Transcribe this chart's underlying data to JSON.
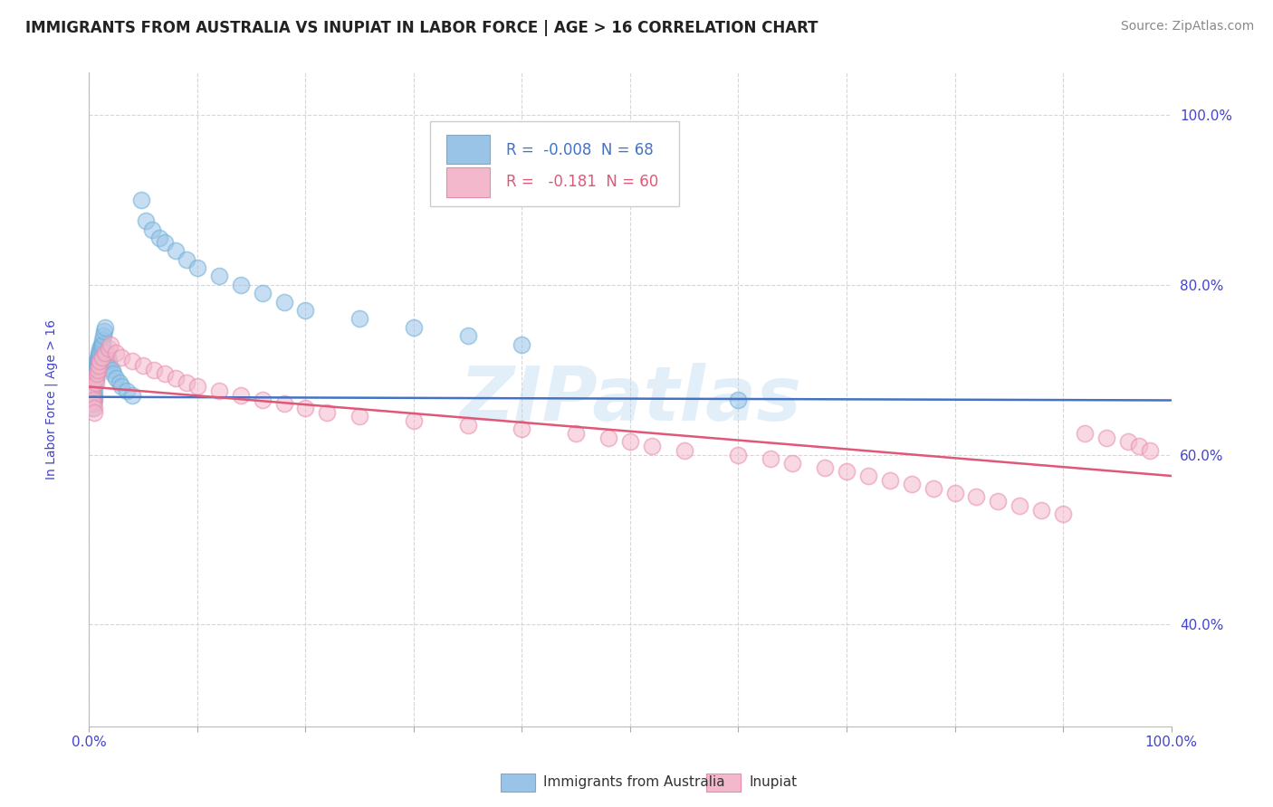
{
  "title": "IMMIGRANTS FROM AUSTRALIA VS INUPIAT IN LABOR FORCE | AGE > 16 CORRELATION CHART",
  "source": "Source: ZipAtlas.com",
  "ylabel": "In Labor Force | Age > 16",
  "xlim": [
    0.0,
    1.0
  ],
  "ylim": [
    0.28,
    1.05
  ],
  "xticks": [
    0.0,
    0.1,
    0.2,
    0.3,
    0.4,
    0.5,
    0.6,
    0.7,
    0.8,
    0.9,
    1.0
  ],
  "xticklabels": [
    "0.0%",
    "",
    "",
    "",
    "",
    "",
    "",
    "",
    "",
    "",
    "100.0%"
  ],
  "ytick_positions": [
    0.4,
    0.6,
    0.8,
    1.0
  ],
  "ytick_labels": [
    "40.0%",
    "60.0%",
    "80.0%",
    "100.0%"
  ],
  "legend_R1": "R =  -0.008  N = 68",
  "legend_R2": "R =   -0.181  N = 60",
  "blue_scatter_x": [
    0.002,
    0.002,
    0.002,
    0.003,
    0.003,
    0.003,
    0.003,
    0.004,
    0.004,
    0.004,
    0.004,
    0.005,
    0.005,
    0.005,
    0.005,
    0.005,
    0.005,
    0.006,
    0.006,
    0.006,
    0.007,
    0.007,
    0.007,
    0.008,
    0.008,
    0.008,
    0.009,
    0.009,
    0.009,
    0.009,
    0.01,
    0.01,
    0.011,
    0.011,
    0.012,
    0.012,
    0.013,
    0.014,
    0.015,
    0.016,
    0.017,
    0.018,
    0.019,
    0.021,
    0.022,
    0.025,
    0.028,
    0.03,
    0.035,
    0.04,
    0.048,
    0.052,
    0.058,
    0.065,
    0.07,
    0.08,
    0.09,
    0.1,
    0.12,
    0.14,
    0.16,
    0.18,
    0.2,
    0.25,
    0.3,
    0.35,
    0.4,
    0.6
  ],
  "blue_scatter_y": [
    0.695,
    0.685,
    0.675,
    0.67,
    0.665,
    0.66,
    0.655,
    0.68,
    0.67,
    0.665,
    0.66,
    0.69,
    0.685,
    0.68,
    0.675,
    0.67,
    0.665,
    0.7,
    0.695,
    0.69,
    0.71,
    0.705,
    0.7,
    0.715,
    0.71,
    0.705,
    0.72,
    0.715,
    0.71,
    0.705,
    0.725,
    0.72,
    0.73,
    0.725,
    0.735,
    0.73,
    0.74,
    0.745,
    0.75,
    0.72,
    0.715,
    0.71,
    0.705,
    0.7,
    0.695,
    0.69,
    0.685,
    0.68,
    0.675,
    0.67,
    0.9,
    0.875,
    0.865,
    0.855,
    0.85,
    0.84,
    0.83,
    0.82,
    0.81,
    0.8,
    0.79,
    0.78,
    0.77,
    0.76,
    0.75,
    0.74,
    0.73,
    0.665
  ],
  "pink_scatter_x": [
    0.003,
    0.003,
    0.004,
    0.004,
    0.005,
    0.005,
    0.006,
    0.006,
    0.007,
    0.008,
    0.009,
    0.01,
    0.012,
    0.015,
    0.018,
    0.02,
    0.025,
    0.03,
    0.04,
    0.05,
    0.06,
    0.07,
    0.08,
    0.09,
    0.1,
    0.12,
    0.14,
    0.16,
    0.18,
    0.2,
    0.22,
    0.25,
    0.3,
    0.35,
    0.4,
    0.45,
    0.48,
    0.5,
    0.52,
    0.55,
    0.6,
    0.63,
    0.65,
    0.68,
    0.7,
    0.72,
    0.74,
    0.76,
    0.78,
    0.8,
    0.82,
    0.84,
    0.86,
    0.88,
    0.9,
    0.92,
    0.94,
    0.96,
    0.97,
    0.98
  ],
  "pink_scatter_y": [
    0.68,
    0.67,
    0.665,
    0.66,
    0.655,
    0.65,
    0.69,
    0.685,
    0.695,
    0.7,
    0.705,
    0.71,
    0.715,
    0.72,
    0.725,
    0.73,
    0.72,
    0.715,
    0.71,
    0.705,
    0.7,
    0.695,
    0.69,
    0.685,
    0.68,
    0.675,
    0.67,
    0.665,
    0.66,
    0.655,
    0.65,
    0.645,
    0.64,
    0.635,
    0.63,
    0.625,
    0.62,
    0.615,
    0.61,
    0.605,
    0.6,
    0.595,
    0.59,
    0.585,
    0.58,
    0.575,
    0.57,
    0.565,
    0.56,
    0.555,
    0.55,
    0.545,
    0.54,
    0.535,
    0.53,
    0.625,
    0.62,
    0.615,
    0.61,
    0.605
  ],
  "blue_line_x": [
    0.0,
    0.5,
    1.0
  ],
  "blue_line_y": [
    0.668,
    0.666,
    0.664
  ],
  "pink_line_x": [
    0.0,
    1.0
  ],
  "pink_line_y": [
    0.68,
    0.575
  ],
  "blue_color": "#99c4e8",
  "pink_color": "#f4b8cc",
  "blue_dot_edge": "#6baed6",
  "pink_dot_edge": "#e88aaa",
  "blue_line_color": "#4472c4",
  "pink_line_color": "#e05878",
  "blue_line_dash": [
    6,
    4
  ],
  "background_color": "#ffffff",
  "grid_color": "#cccccc",
  "title_color": "#222222",
  "axis_label_color": "#4444cc",
  "tick_color": "#4444cc",
  "watermark_text": "ZIPatlas",
  "watermark_color": "#b8d8f0",
  "watermark_alpha": 0.4,
  "watermark_fontsize": 60,
  "title_fontsize": 12,
  "source_fontsize": 10,
  "legend_fontsize": 12,
  "tick_fontsize": 11
}
